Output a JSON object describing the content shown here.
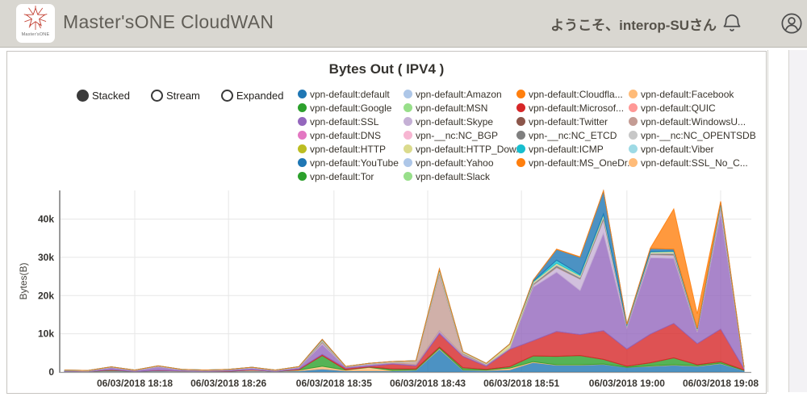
{
  "header": {
    "logo_caption": "Master'sONE",
    "app_title": "Master'sONE CloudWAN",
    "welcome_text": "ようこそ、interop-SUさん",
    "icons": [
      "bell-icon",
      "user-icon"
    ]
  },
  "controls": {
    "modes": [
      {
        "label": "Stacked",
        "selected": true
      },
      {
        "label": "Stream",
        "selected": false
      },
      {
        "label": "Expanded",
        "selected": false
      }
    ]
  },
  "chart_data": {
    "type": "area",
    "stacked": true,
    "title": "Bytes Out ( IPV4 )",
    "ylabel": "Bytes(B)",
    "ylim": [
      0,
      47500
    ],
    "grid": true,
    "legend_position": "top",
    "y_ticks": [
      {
        "v": 0,
        "label": "0"
      },
      {
        "v": 10000,
        "label": "10k"
      },
      {
        "v": 20000,
        "label": "20k"
      },
      {
        "v": 30000,
        "label": "30k"
      },
      {
        "v": 40000,
        "label": "40k"
      }
    ],
    "x_ticks": [
      {
        "m": 7,
        "label": "06/03/2018 18:18"
      },
      {
        "m": 15,
        "label": "06/03/2018 18:26"
      },
      {
        "m": 24,
        "label": "06/03/2018 18:35"
      },
      {
        "m": 32,
        "label": "06/03/2018 18:43"
      },
      {
        "m": 40,
        "label": "06/03/2018 18:51"
      },
      {
        "m": 49,
        "label": "06/03/2018 19:00"
      },
      {
        "m": 57,
        "label": "06/03/2018 19:08"
      }
    ],
    "x_minutes": [
      1,
      3,
      5,
      7,
      9,
      11,
      13,
      15,
      17,
      19,
      21,
      23,
      25,
      27,
      29,
      31,
      33,
      35,
      37,
      39,
      41,
      43,
      45,
      47,
      49,
      51,
      53,
      55,
      57,
      59
    ],
    "series": [
      {
        "name": "vpn-default:default",
        "color": "#1f77b4",
        "values": [
          200,
          150,
          250,
          150,
          250,
          150,
          150,
          200,
          250,
          150,
          300,
          800,
          300,
          300,
          300,
          500,
          6000,
          500,
          400,
          600,
          2500,
          1800,
          1800,
          2000,
          1200,
          1500,
          1800,
          1500,
          2200,
          400
        ]
      },
      {
        "name": "vpn-default:Facebook",
        "color": "#ffbb78",
        "values": [
          0,
          0,
          100,
          0,
          100,
          100,
          0,
          0,
          250,
          0,
          200,
          700,
          200,
          900,
          100,
          100,
          200,
          100,
          100,
          400,
          200,
          100,
          100,
          100,
          0,
          100,
          100,
          100,
          100,
          0
        ]
      },
      {
        "name": "vpn-default:Google",
        "color": "#2ca02c",
        "values": [
          0,
          0,
          100,
          0,
          0,
          0,
          0,
          0,
          0,
          0,
          100,
          2800,
          100,
          100,
          400,
          200,
          300,
          500,
          200,
          400,
          1500,
          2200,
          2400,
          1200,
          300,
          800,
          1800,
          300,
          400,
          100
        ]
      },
      {
        "name": "vpn-default:Microsof...",
        "color": "#d62728",
        "values": [
          0,
          0,
          150,
          0,
          100,
          0,
          0,
          100,
          100,
          0,
          150,
          300,
          400,
          200,
          1300,
          800,
          3500,
          3000,
          800,
          4500,
          4000,
          6500,
          5500,
          7500,
          4500,
          7500,
          9000,
          5500,
          8500,
          300
        ]
      },
      {
        "name": "vpn-default:SSL",
        "color": "#9467bd",
        "values": [
          150,
          100,
          600,
          200,
          900,
          300,
          200,
          250,
          400,
          200,
          500,
          2600,
          300,
          400,
          300,
          300,
          600,
          300,
          400,
          200,
          14000,
          15500,
          11500,
          25500,
          5500,
          20000,
          17000,
          3000,
          30500,
          200
        ]
      },
      {
        "name": "vpn-default:Skype",
        "color": "#c5b0d5",
        "values": [
          0,
          0,
          0,
          0,
          100,
          0,
          0,
          0,
          100,
          0,
          0,
          400,
          0,
          100,
          0,
          0,
          200,
          100,
          0,
          100,
          500,
          1200,
          3000,
          3500,
          300,
          800,
          800,
          300,
          1200,
          100
        ]
      },
      {
        "name": "vpn-default:WindowsU...",
        "color": "#c49c94",
        "values": [
          0,
          0,
          0,
          0,
          0,
          0,
          0,
          0,
          0,
          0,
          0,
          300,
          0,
          100,
          100,
          800,
          15000,
          300,
          100,
          100,
          200,
          200,
          100,
          200,
          100,
          100,
          200,
          100,
          200,
          0
        ]
      },
      {
        "name": "vpn-__nc:NC_ETCD",
        "color": "#7f7f7f",
        "values": [
          0,
          0,
          0,
          0,
          0,
          0,
          0,
          0,
          0,
          0,
          0,
          100,
          0,
          0,
          0,
          0,
          200,
          100,
          0,
          0,
          200,
          400,
          300,
          500,
          100,
          200,
          300,
          100,
          300,
          0
        ]
      },
      {
        "name": "vpn-__nc:NC_OPENTSDB",
        "color": "#c7c7c7",
        "values": [
          150,
          150,
          150,
          150,
          150,
          150,
          150,
          150,
          150,
          150,
          150,
          250,
          150,
          150,
          150,
          150,
          300,
          200,
          150,
          200,
          200,
          250,
          250,
          250,
          200,
          200,
          250,
          200,
          250,
          100
        ]
      },
      {
        "name": "vpn-default:HTTP_Dow...",
        "color": "#dbdb8d",
        "values": [
          0,
          0,
          0,
          0,
          0,
          0,
          0,
          0,
          0,
          0,
          0,
          200,
          0,
          0,
          100,
          100,
          400,
          200,
          100,
          800,
          300,
          300,
          300,
          400,
          100,
          200,
          300,
          100,
          300,
          0
        ]
      },
      {
        "name": "vpn-default:ICMP",
        "color": "#17becf",
        "values": [
          0,
          0,
          0,
          0,
          0,
          0,
          0,
          0,
          0,
          0,
          0,
          0,
          0,
          0,
          0,
          0,
          100,
          0,
          0,
          0,
          100,
          800,
          300,
          200,
          0,
          100,
          100,
          0,
          100,
          0
        ]
      },
      {
        "name": "vpn-default:YouTube",
        "color": "#1f77b4",
        "values": [
          0,
          0,
          0,
          0,
          0,
          0,
          0,
          0,
          0,
          0,
          0,
          100,
          0,
          0,
          0,
          0,
          100,
          0,
          0,
          0,
          300,
          2800,
          4500,
          6000,
          200,
          800,
          500,
          200,
          400,
          0
        ]
      },
      {
        "name": "vpn-default:MS_OneDr...",
        "color": "#ff7f0e",
        "values": [
          0,
          0,
          0,
          0,
          0,
          0,
          0,
          0,
          0,
          0,
          0,
          0,
          0,
          0,
          0,
          0,
          100,
          0,
          0,
          0,
          0,
          100,
          100,
          100,
          0,
          100,
          10500,
          3800,
          200,
          0
        ]
      }
    ],
    "legend": [
      {
        "name": "vpn-default:default",
        "color": "#1f77b4"
      },
      {
        "name": "vpn-default:Amazon",
        "color": "#aec7e8"
      },
      {
        "name": "vpn-default:Cloudfla...",
        "color": "#ff7f0e"
      },
      {
        "name": "vpn-default:Facebook",
        "color": "#ffbb78"
      },
      {
        "name": "vpn-default:Google",
        "color": "#2ca02c"
      },
      {
        "name": "vpn-default:MSN",
        "color": "#98df8a"
      },
      {
        "name": "vpn-default:Microsof...",
        "color": "#d62728"
      },
      {
        "name": "vpn-default:QUIC",
        "color": "#ff9896"
      },
      {
        "name": "vpn-default:SSL",
        "color": "#9467bd"
      },
      {
        "name": "vpn-default:Skype",
        "color": "#c5b0d5"
      },
      {
        "name": "vpn-default:Twitter",
        "color": "#8c564b"
      },
      {
        "name": "vpn-default:WindowsU...",
        "color": "#c49c94"
      },
      {
        "name": "vpn-default:DNS",
        "color": "#e377c2"
      },
      {
        "name": "vpn-__nc:NC_BGP",
        "color": "#f7b6d2"
      },
      {
        "name": "vpn-__nc:NC_ETCD",
        "color": "#7f7f7f"
      },
      {
        "name": "vpn-__nc:NC_OPENTSDB",
        "color": "#c7c7c7"
      },
      {
        "name": "vpn-default:HTTP",
        "color": "#bcbd22"
      },
      {
        "name": "vpn-default:HTTP_Dow...",
        "color": "#dbdb8d"
      },
      {
        "name": "vpn-default:ICMP",
        "color": "#17becf"
      },
      {
        "name": "vpn-default:Viber",
        "color": "#9edae5"
      },
      {
        "name": "vpn-default:YouTube",
        "color": "#1f77b4"
      },
      {
        "name": "vpn-default:Yahoo",
        "color": "#aec7e8"
      },
      {
        "name": "vpn-default:MS_OneDr...",
        "color": "#ff7f0e"
      },
      {
        "name": "vpn-default:SSL_No_C...",
        "color": "#ffbb78"
      },
      {
        "name": "vpn-default:Tor",
        "color": "#2ca02c"
      },
      {
        "name": "vpn-default:Slack",
        "color": "#98df8a"
      }
    ]
  }
}
